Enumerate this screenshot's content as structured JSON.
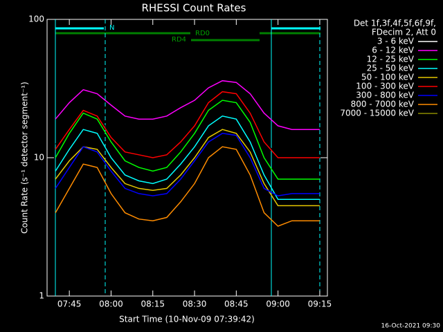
{
  "chart_data": {
    "type": "line",
    "title": "RHESSI Count Rates",
    "x_label": "Start Time (10-Nov-09 07:39:42)",
    "y_label": "Count Rate (s⁻¹ detector segment⁻¹)",
    "legend_header": [
      "Det 1f,3f,4f,5f,6f,9f,",
      "FDecim 2, Att 0"
    ],
    "footer": "16-Oct-2021 09:30",
    "annotations": [
      "N",
      "RD0",
      "RD4"
    ],
    "log_y": true,
    "xlim": [
      "07:37:00",
      "09:17:45"
    ],
    "xticks": [
      "07:45",
      "08:00",
      "08:15",
      "08:30",
      "08:45",
      "09:00",
      "09:15"
    ],
    "ylim": [
      1,
      100
    ],
    "yticks": [
      1,
      10,
      100
    ],
    "x": [
      "07:40",
      "07:45",
      "07:50",
      "07:55",
      "08:00",
      "08:05",
      "08:10",
      "08:15",
      "08:20",
      "08:25",
      "08:30",
      "08:35",
      "08:40",
      "08:45",
      "08:50",
      "08:55",
      "09:00",
      "09:05",
      "09:10",
      "09:15"
    ],
    "series": [
      {
        "name": "3 - 6 keV",
        "color": "#000000",
        "values": [
          12.5,
          17,
          21,
          20,
          15,
          12,
          11,
          10.5,
          11,
          13,
          16,
          21,
          24,
          23,
          18,
          13,
          10.5,
          10.5,
          10.5,
          10.5
        ]
      },
      {
        "name": "6 - 12 keV",
        "color": "#ff00ff",
        "values": [
          19,
          25,
          31,
          29,
          24,
          20,
          19,
          19,
          20,
          23,
          26,
          32,
          36,
          35,
          29,
          21,
          17,
          16,
          16,
          16
        ]
      },
      {
        "name": "12 - 25 keV",
        "color": "#00ff00",
        "values": [
          10,
          15,
          21,
          19,
          13,
          9.5,
          8.5,
          8,
          8.5,
          11,
          15,
          22,
          26,
          25,
          18,
          10,
          7,
          7,
          7,
          7
        ]
      },
      {
        "name": "25 - 50 keV",
        "color": "#00ffff",
        "values": [
          8,
          11.5,
          16,
          15,
          10,
          7.5,
          6.8,
          6.5,
          7,
          9,
          12,
          17,
          20,
          19,
          13,
          7.5,
          5,
          5,
          5,
          5
        ]
      },
      {
        "name": "50 - 100 keV",
        "color": "#e6c800",
        "values": [
          7,
          9.5,
          12,
          11.5,
          8.5,
          6.5,
          6,
          5.8,
          6,
          7.5,
          10,
          14,
          16,
          15,
          11,
          6.5,
          4.5,
          4.5,
          4.5,
          4.5
        ]
      },
      {
        "name": "100 - 300 keV",
        "color": "#ff0000",
        "values": [
          11.5,
          16,
          22,
          20,
          14,
          11,
          10.5,
          10,
          10.5,
          13,
          17,
          25,
          30,
          29,
          21,
          13,
          10,
          10,
          10,
          10
        ]
      },
      {
        "name": "300 - 800 keV",
        "color": "#0000ff",
        "values": [
          6,
          8.5,
          12,
          11,
          8,
          6,
          5.5,
          5.3,
          5.5,
          7,
          9.5,
          13,
          15,
          14.5,
          10,
          6,
          5.3,
          5.5,
          5.5,
          5.5
        ]
      },
      {
        "name": "800 - 7000 keV",
        "color": "#ff8c00",
        "values": [
          4,
          6,
          9,
          8.5,
          5.5,
          4,
          3.6,
          3.5,
          3.7,
          4.8,
          6.5,
          10,
          12,
          11.5,
          7.5,
          4,
          3.2,
          3.5,
          3.5,
          3.5
        ]
      },
      {
        "name": "7000 - 15000 keV",
        "color": "#8b8b00",
        "values": [
          null,
          null,
          null,
          null,
          null,
          null,
          null,
          null,
          null,
          null,
          null,
          null,
          null,
          null,
          null,
          null,
          null,
          null,
          null,
          null
        ]
      }
    ]
  }
}
